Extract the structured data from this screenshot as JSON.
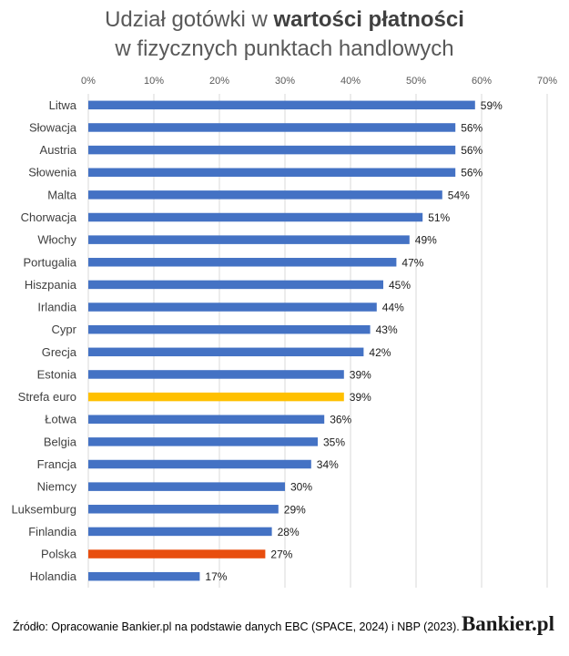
{
  "title": {
    "line1_pre": "Udział gotówki w ",
    "line1_bold": "wartości płatności",
    "line2": "w fizycznych punktach handlowych"
  },
  "colors": {
    "default": "#4472C4",
    "euro_area": "#FFC000",
    "poland": "#E84E0F",
    "grid": "#D9D9D9",
    "tick": "#595959"
  },
  "chart_data": {
    "type": "bar",
    "orientation": "horizontal",
    "categories": [
      "Litwa",
      "Słowacja",
      "Austria",
      "Słowenia",
      "Malta",
      "Chorwacja",
      "Włochy",
      "Portugalia",
      "Hiszpania",
      "Irlandia",
      "Cypr",
      "Grecja",
      "Estonia",
      "Strefa euro",
      "Łotwa",
      "Belgia",
      "Francja",
      "Niemcy",
      "Luksemburg",
      "Finlandia",
      "Polska",
      "Holandia"
    ],
    "values": [
      59,
      56,
      56,
      56,
      54,
      51,
      49,
      47,
      45,
      44,
      43,
      42,
      39,
      39,
      36,
      35,
      34,
      30,
      29,
      28,
      27,
      17
    ],
    "data_labels": [
      "59%",
      "56%",
      "56%",
      "56%",
      "54%",
      "51%",
      "49%",
      "47%",
      "45%",
      "44%",
      "43%",
      "42%",
      "39%",
      "39%",
      "36%",
      "35%",
      "34%",
      "30%",
      "29%",
      "28%",
      "27%",
      "17%"
    ],
    "highlight": {
      "Strefa euro": "euro_area",
      "Polska": "poland"
    },
    "xlim": [
      0,
      70
    ],
    "xticks": [
      "0%",
      "10%",
      "20%",
      "30%",
      "40%",
      "50%",
      "60%",
      "70%"
    ],
    "x_axis_position": "top",
    "grid": true
  },
  "source": "Źródło: Opracowanie Bankier.pl na podstawie danych EBC (SPACE, 2024) i NBP (2023).",
  "logo_text": "Bankier.pl"
}
